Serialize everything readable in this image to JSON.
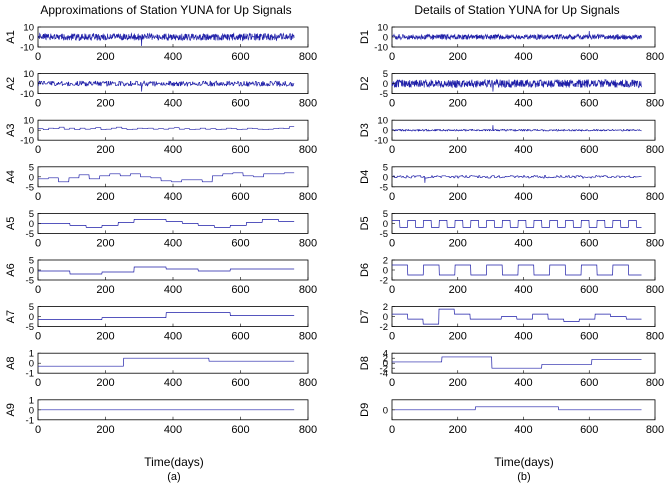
{
  "panels": [
    {
      "title": "Approximations of Station YUNA for Up Signals",
      "xlabel": "Time(days)",
      "caption": "(a)"
    },
    {
      "title": "Details of Station YUNA for Up Signals",
      "xlabel": "Time(days)",
      "caption": "(b)"
    }
  ],
  "line_color": "#1f1fa8",
  "chart_data": [
    {
      "type": "line",
      "title": "Approximations of Station YUNA for Up Signals",
      "xlabel": "Time(days)",
      "xlim": [
        0,
        800
      ],
      "xticks": [
        "0",
        "200",
        "400",
        "600",
        "800"
      ],
      "data_length": 760,
      "subplots": [
        {
          "name": "A1",
          "ylim": [
            -10,
            10
          ],
          "yticks": [
            "10",
            "0",
            "-10"
          ],
          "kind": "noise",
          "amp": 3.5,
          "segment": 1,
          "spike_at": 307,
          "spike_val": -9
        },
        {
          "name": "A2",
          "ylim": [
            -10,
            10
          ],
          "yticks": [
            "10",
            "0",
            "-10"
          ],
          "kind": "noise",
          "amp": 2.5,
          "segment": 2,
          "spike_at": 307,
          "spike_val": -8
        },
        {
          "name": "A3",
          "ylim": [
            -10,
            10
          ],
          "yticks": [
            "10",
            "0",
            "-10"
          ],
          "kind": "step",
          "values": [
            1.5,
            0.5,
            2,
            1.5,
            3,
            1,
            2,
            0.5,
            2,
            1,
            1.5,
            2.5,
            0.5,
            1,
            2,
            3,
            1.5,
            0.5,
            1,
            2,
            1.5,
            2,
            1,
            1.5,
            1,
            2,
            2.5,
            1,
            1.5,
            0.5,
            1,
            2,
            1,
            1.5,
            0.5,
            1,
            2,
            1.5,
            0.5,
            1,
            2,
            1.5,
            1,
            0.5,
            1,
            1.5,
            2,
            1.5,
            3.5
          ]
        },
        {
          "name": "A4",
          "ylim": [
            -5,
            5
          ],
          "yticks": [
            "5",
            "0",
            "-5"
          ],
          "kind": "step",
          "values": [
            -1,
            -0.5,
            -2.5,
            -0.5,
            1,
            -1,
            0.5,
            1.5,
            0.5,
            1.5,
            0,
            -0.5,
            -2,
            -2.5,
            -1.5,
            -1.5,
            -2.5,
            0.5,
            1.5,
            2,
            0.5,
            0,
            1.5,
            1.5,
            2
          ]
        },
        {
          "name": "A5",
          "ylim": [
            -5,
            5
          ],
          "yticks": [
            "5",
            "0",
            "-5"
          ],
          "kind": "step",
          "values": [
            0,
            0,
            -1,
            -2,
            -1,
            0.5,
            2,
            2,
            1,
            0,
            -1,
            -2,
            -1,
            0.5,
            2,
            1
          ]
        },
        {
          "name": "A6",
          "ylim": [
            -5,
            5
          ],
          "yticks": [
            "5",
            "0",
            "-5"
          ],
          "kind": "step",
          "values": [
            -0.5,
            -2,
            -1,
            1.5,
            0.5,
            -0.5,
            0.5,
            0.5
          ]
        },
        {
          "name": "A7",
          "ylim": [
            -5,
            5
          ],
          "yticks": [
            "5",
            "0",
            "-5"
          ],
          "kind": "step",
          "values": [
            -1.5,
            -0.5,
            2,
            0.5
          ]
        },
        {
          "name": "A8",
          "ylim": [
            -1,
            1
          ],
          "yticks": [
            "1",
            "0",
            "-1"
          ],
          "kind": "step",
          "values": [
            -0.3,
            0.5,
            0.2
          ]
        },
        {
          "name": "A9",
          "ylim": [
            -1,
            1
          ],
          "yticks": [
            "1",
            "0",
            "-1"
          ],
          "kind": "step",
          "values": [
            0,
            0
          ]
        }
      ]
    },
    {
      "type": "line",
      "title": "Details of Station YUNA for Up Signals",
      "xlabel": "Time(days)",
      "xlim": [
        0,
        800
      ],
      "xticks": [
        "0",
        "200",
        "400",
        "600",
        "800"
      ],
      "data_length": 760,
      "subplots": [
        {
          "name": "D1",
          "ylim": [
            -10,
            10
          ],
          "yticks": [
            "10",
            "0",
            "-10"
          ],
          "kind": "noise",
          "amp": 2.5,
          "segment": 1,
          "spike_at": 600,
          "spike_val": 6
        },
        {
          "name": "D2",
          "ylim": [
            -5,
            5
          ],
          "yticks": [
            "5",
            "0",
            "-5"
          ],
          "kind": "noise",
          "amp": 2,
          "segment": 1,
          "spike_at": 307,
          "spike_val": -4
        },
        {
          "name": "D3",
          "ylim": [
            -10,
            10
          ],
          "yticks": [
            "10",
            "0",
            "-10"
          ],
          "kind": "noise",
          "amp": 0.8,
          "segment": 2,
          "spike_at": 307,
          "spike_val": 5
        },
        {
          "name": "D4",
          "ylim": [
            -5,
            5
          ],
          "yticks": [
            "5",
            "0",
            "-5"
          ],
          "kind": "noise",
          "amp": 0.6,
          "segment": 4,
          "spike_at": 100,
          "spike_val": -3
        },
        {
          "name": "D5",
          "ylim": [
            -5,
            5
          ],
          "yticks": [
            "5",
            "0",
            "-5"
          ],
          "kind": "square",
          "low": -2,
          "high": 1.5,
          "period": 48
        },
        {
          "name": "D6",
          "ylim": [
            -2,
            2
          ],
          "yticks": [
            "2",
            "0",
            "-2"
          ],
          "kind": "square",
          "low": -1,
          "high": 1,
          "period": 96
        },
        {
          "name": "D7",
          "ylim": [
            -2,
            2
          ],
          "yticks": [
            "2",
            "0",
            "-2"
          ],
          "kind": "step",
          "values": [
            0.5,
            -0.5,
            -1.5,
            1.5,
            0.5,
            -0.5,
            -0.5,
            0,
            -0.5,
            0.5,
            -0.5,
            -1,
            -0.5,
            0.5,
            0,
            -0.5
          ]
        },
        {
          "name": "D8",
          "ylim": [
            -4,
            4
          ],
          "yticks": [
            "4",
            "2",
            "0",
            "-2",
            "-4"
          ],
          "kind": "step",
          "values": [
            0.5,
            2.5,
            -2,
            -0.5,
            1.5
          ]
        },
        {
          "name": "D9",
          "ylim": [
            -1,
            1
          ],
          "yticks": [
            "0"
          ],
          "kind": "step",
          "values": [
            0,
            0.3,
            0
          ]
        }
      ]
    }
  ]
}
